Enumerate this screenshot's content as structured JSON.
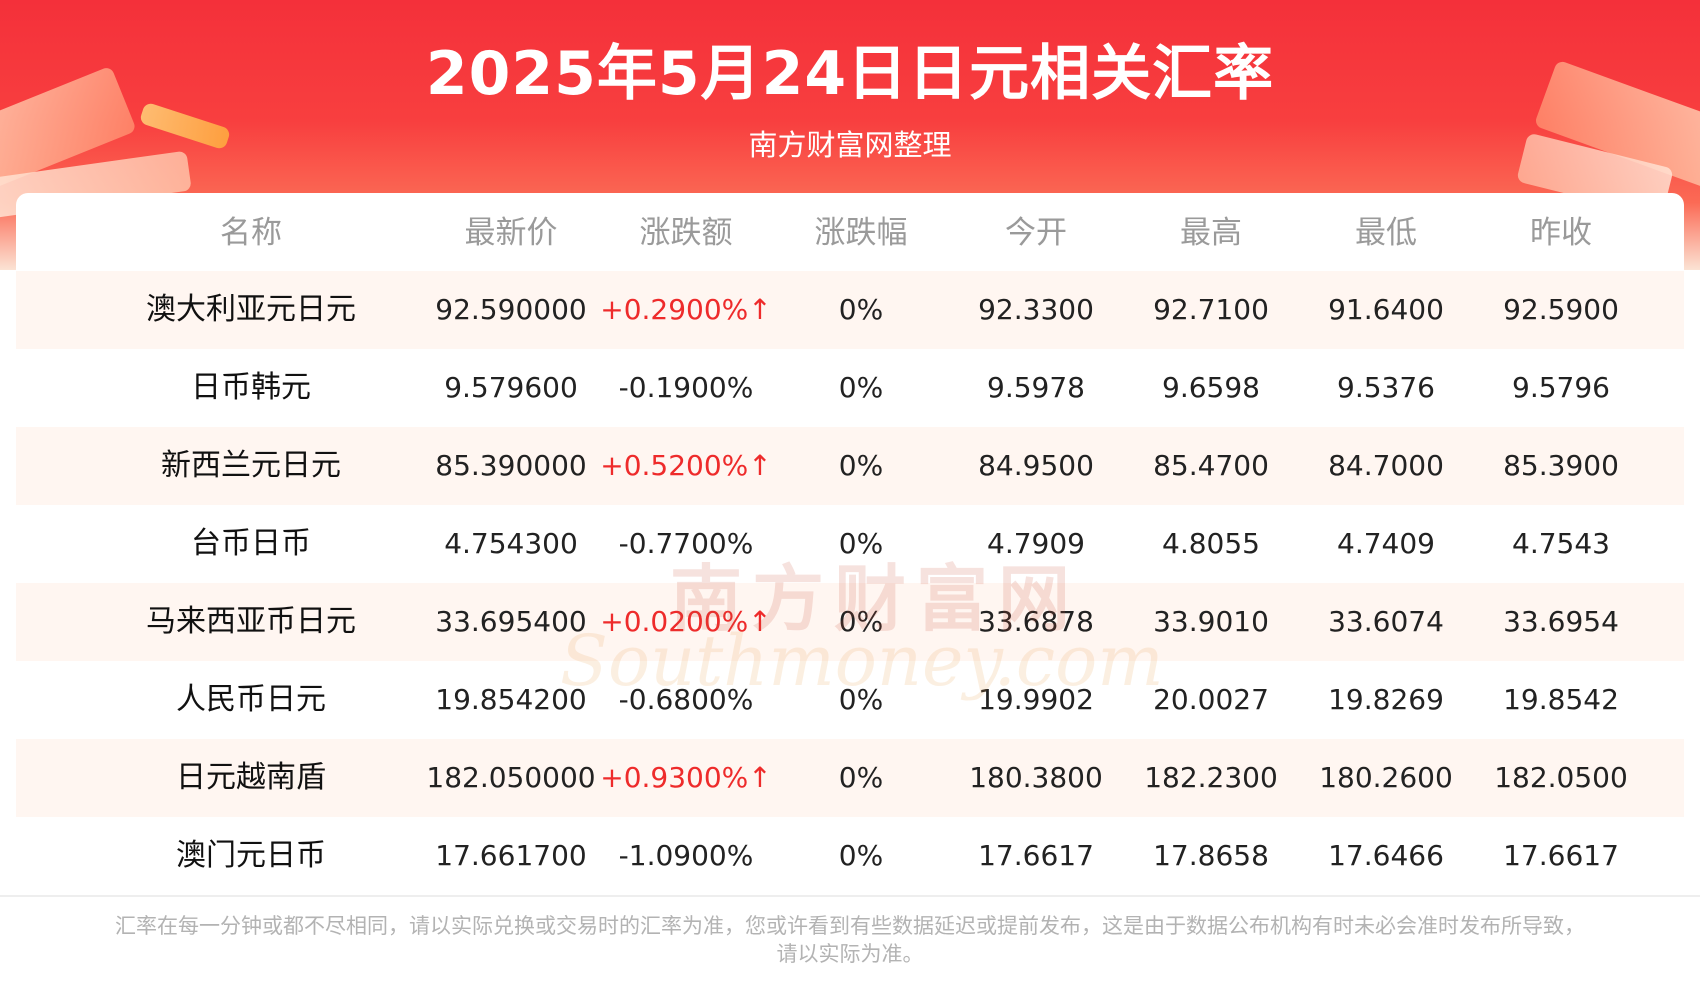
{
  "header": {
    "title": "2025年5月24日日元相关汇率",
    "subtitle": "南方财富网整理"
  },
  "table": {
    "columns": [
      "名称",
      "最新价",
      "涨跌额",
      "涨跌幅",
      "今开",
      "最高",
      "最低",
      "昨收"
    ],
    "rows": [
      {
        "name": "澳大利亚元日元",
        "latest": "92.590000",
        "change": "+0.2900%↑",
        "change_pct": "0%",
        "open": "92.3300",
        "high": "92.7100",
        "low": "91.6400",
        "prev_close": "92.5900"
      },
      {
        "name": "日币韩元",
        "latest": "9.579600",
        "change": "-0.1900%",
        "change_pct": "0%",
        "open": "9.5978",
        "high": "9.6598",
        "low": "9.5376",
        "prev_close": "9.5796"
      },
      {
        "name": "新西兰元日元",
        "latest": "85.390000",
        "change": "+0.5200%↑",
        "change_pct": "0%",
        "open": "84.9500",
        "high": "85.4700",
        "low": "84.7000",
        "prev_close": "85.3900"
      },
      {
        "name": "台币日币",
        "latest": "4.754300",
        "change": "-0.7700%",
        "change_pct": "0%",
        "open": "4.7909",
        "high": "4.8055",
        "low": "4.7409",
        "prev_close": "4.7543"
      },
      {
        "name": "马来西亚币日元",
        "latest": "33.695400",
        "change": "+0.0200%↑",
        "change_pct": "0%",
        "open": "33.6878",
        "high": "33.9010",
        "low": "33.6074",
        "prev_close": "33.6954"
      },
      {
        "name": "人民币日元",
        "latest": "19.854200",
        "change": "-0.6800%",
        "change_pct": "0%",
        "open": "19.9902",
        "high": "20.0027",
        "low": "19.8269",
        "prev_close": "19.8542"
      },
      {
        "name": "日元越南盾",
        "latest": "182.050000",
        "change": "+0.9300%↑",
        "change_pct": "0%",
        "open": "180.3800",
        "high": "182.2300",
        "low": "180.2600",
        "prev_close": "182.0500"
      },
      {
        "name": "澳门元日币",
        "latest": "17.661700",
        "change": "-1.0900%",
        "change_pct": "0%",
        "open": "17.6617",
        "high": "17.8658",
        "low": "17.6466",
        "prev_close": "17.6617"
      }
    ]
  },
  "watermark": {
    "cn": "南方财富网",
    "en": "Southmoney.com"
  },
  "footer": {
    "line1": "汇率在每一分钟或都不尽相同，请以实际兑换或交易时的汇率为准，您或许看到有些数据延迟或提前发布，这是由于数据公布机构有时未必会准时发布所导致，",
    "line2": "请以实际为准。"
  },
  "colors": {
    "header_red": "#f4303a",
    "up_red": "#ee2b2b",
    "stripe": "#fff6f1"
  }
}
